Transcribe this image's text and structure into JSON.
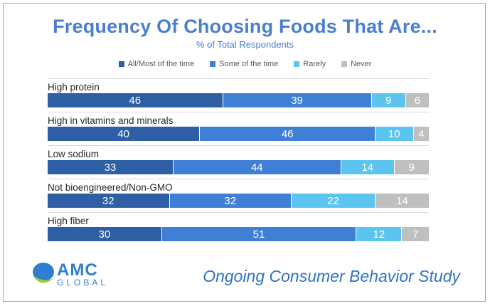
{
  "chart_data": {
    "type": "bar",
    "orientation": "horizontal",
    "stacked": true,
    "title": "Frequency Of Choosing Foods That Are...",
    "subtitle": "% of Total Respondents",
    "legend_position": "top-center",
    "categories": [
      "High protein",
      "High in vitamins and minerals",
      "Low sodium",
      "Not bioengineered/Non-GMO",
      "High fiber"
    ],
    "series": [
      {
        "name": "All/Most of the time",
        "color": "#2e5ea3",
        "values": [
          46,
          40,
          33,
          32,
          30
        ]
      },
      {
        "name": "Some of the time",
        "color": "#3f7fd6",
        "values": [
          39,
          46,
          44,
          32,
          51
        ]
      },
      {
        "name": "Rarely",
        "color": "#5cc5ef",
        "values": [
          9,
          10,
          14,
          22,
          12
        ]
      },
      {
        "name": "Never",
        "color": "#bfbfbf",
        "values": [
          6,
          4,
          9,
          14,
          7
        ]
      }
    ],
    "xlim": [
      0,
      100
    ]
  },
  "logo": {
    "main": "AMC",
    "sub": "GLOBAL"
  },
  "footer": {
    "text": "Ongoing Consumer Behavior Study"
  }
}
